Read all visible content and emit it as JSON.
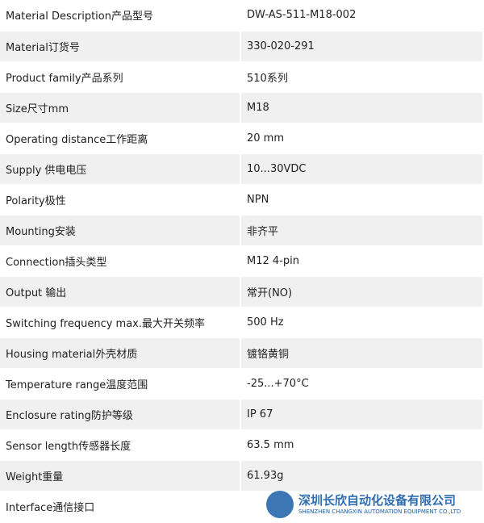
{
  "table": {
    "rows": [
      [
        "Material Description产品型号",
        "DW-AS-511-M18-002"
      ],
      [
        "Material订货号",
        "330-020-291"
      ],
      [
        "Product family产品系列",
        "510系列"
      ],
      [
        "Size尺寸mm",
        "M18"
      ],
      [
        "Operating  distance工作距离",
        "20 mm"
      ],
      [
        "Supply 供电电压",
        "10...30VDC"
      ],
      [
        "Polarity极性",
        "NPN"
      ],
      [
        "Mounting安装",
        "非齐平"
      ],
      [
        "Connection插头类型",
        "M12 4-pin"
      ],
      [
        "Output 输出",
        "常开(NO)"
      ],
      [
        "Switching frequency max.最大开关频率",
        "500 Hz"
      ],
      [
        "Housing material外壳材质",
        "镀铬黄铜"
      ],
      [
        "Temperature range温度范围",
        "-25...+70°C"
      ],
      [
        "Enclosure rating防护等级",
        "IP 67"
      ],
      [
        "Sensor length传感器长度",
        "63.5 mm"
      ],
      [
        "Weight重量",
        "61.93g"
      ],
      [
        "Interface通信接口"
      ]
    ]
  },
  "watermark": {
    "company": "深圳长欣自动化设备有限公司",
    "english": "SHENZHEN CHANGXIN AUTOMATION EQUIPMENT CO.,LTD"
  }
}
